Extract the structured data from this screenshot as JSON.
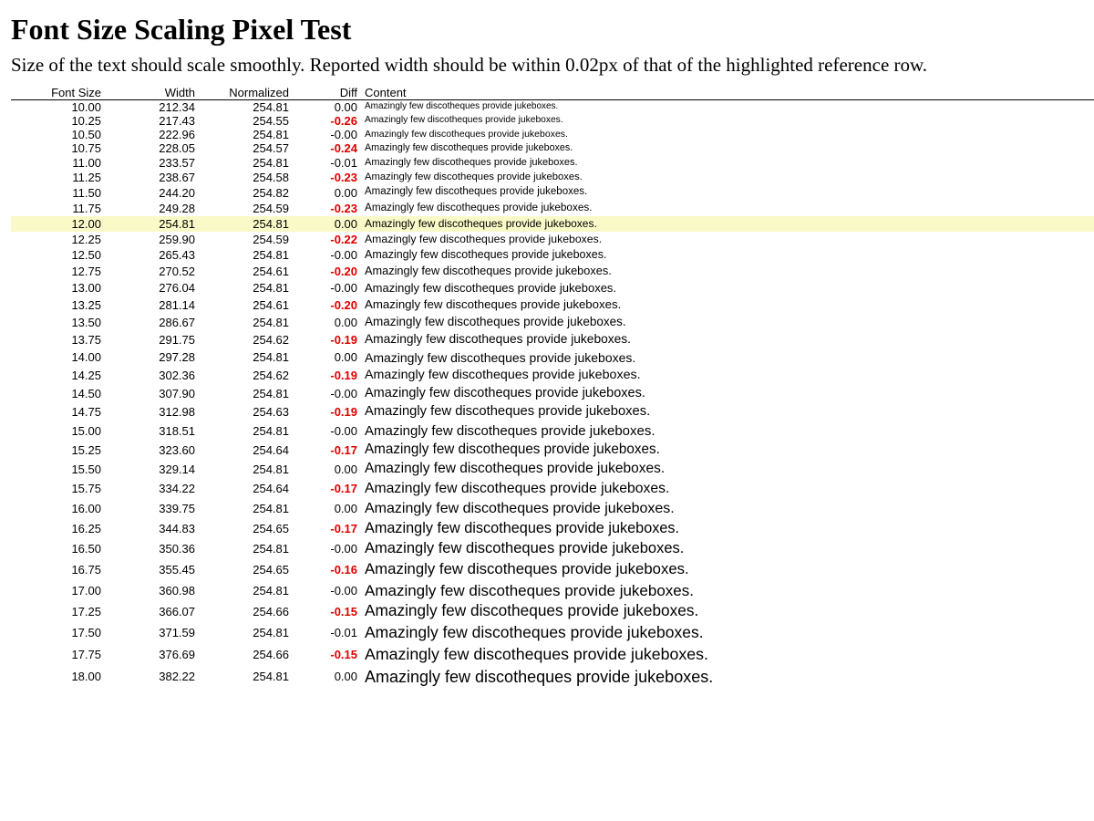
{
  "title": "Font Size Scaling Pixel Test",
  "subtitle": "Size of the text should scale smoothly. Reported width should be within 0.02px of that of the highlighted reference row.",
  "columns": {
    "font_size": "Font Size",
    "width": "Width",
    "normalized": "Normalized",
    "diff": "Diff",
    "content": "Content"
  },
  "reference_font_size": "12.00",
  "highlight_color": "#fafac8",
  "bad_diff_color": "#dd0000",
  "rows": [
    {
      "size": "10.00",
      "width": "212.34",
      "norm": "254.81",
      "diff": "0.00",
      "bad": false,
      "content": "Amazingly few discotheques provide jukeboxes."
    },
    {
      "size": "10.25",
      "width": "217.43",
      "norm": "254.55",
      "diff": "-0.26",
      "bad": true,
      "content": "Amazingly few discotheques provide jukeboxes."
    },
    {
      "size": "10.50",
      "width": "222.96",
      "norm": "254.81",
      "diff": "-0.00",
      "bad": false,
      "content": "Amazingly few discotheques provide jukeboxes."
    },
    {
      "size": "10.75",
      "width": "228.05",
      "norm": "254.57",
      "diff": "-0.24",
      "bad": true,
      "content": "Amazingly few discotheques provide jukeboxes."
    },
    {
      "size": "11.00",
      "width": "233.57",
      "norm": "254.81",
      "diff": "-0.01",
      "bad": false,
      "content": "Amazingly few discotheques provide jukeboxes."
    },
    {
      "size": "11.25",
      "width": "238.67",
      "norm": "254.58",
      "diff": "-0.23",
      "bad": true,
      "content": "Amazingly few discotheques provide jukeboxes."
    },
    {
      "size": "11.50",
      "width": "244.20",
      "norm": "254.82",
      "diff": "0.00",
      "bad": false,
      "content": "Amazingly few discotheques provide jukeboxes."
    },
    {
      "size": "11.75",
      "width": "249.28",
      "norm": "254.59",
      "diff": "-0.23",
      "bad": true,
      "content": "Amazingly few discotheques provide jukeboxes."
    },
    {
      "size": "12.00",
      "width": "254.81",
      "norm": "254.81",
      "diff": "0.00",
      "bad": false,
      "content": "Amazingly few discotheques provide jukeboxes."
    },
    {
      "size": "12.25",
      "width": "259.90",
      "norm": "254.59",
      "diff": "-0.22",
      "bad": true,
      "content": "Amazingly few discotheques provide jukeboxes."
    },
    {
      "size": "12.50",
      "width": "265.43",
      "norm": "254.81",
      "diff": "-0.00",
      "bad": false,
      "content": "Amazingly few discotheques provide jukeboxes."
    },
    {
      "size": "12.75",
      "width": "270.52",
      "norm": "254.61",
      "diff": "-0.20",
      "bad": true,
      "content": "Amazingly few discotheques provide jukeboxes."
    },
    {
      "size": "13.00",
      "width": "276.04",
      "norm": "254.81",
      "diff": "-0.00",
      "bad": false,
      "content": "Amazingly few discotheques provide jukeboxes."
    },
    {
      "size": "13.25",
      "width": "281.14",
      "norm": "254.61",
      "diff": "-0.20",
      "bad": true,
      "content": "Amazingly few discotheques provide jukeboxes."
    },
    {
      "size": "13.50",
      "width": "286.67",
      "norm": "254.81",
      "diff": "0.00",
      "bad": false,
      "content": "Amazingly few discotheques provide jukeboxes."
    },
    {
      "size": "13.75",
      "width": "291.75",
      "norm": "254.62",
      "diff": "-0.19",
      "bad": true,
      "content": "Amazingly few discotheques provide jukeboxes."
    },
    {
      "size": "14.00",
      "width": "297.28",
      "norm": "254.81",
      "diff": "0.00",
      "bad": false,
      "content": "Amazingly few discotheques provide jukeboxes."
    },
    {
      "size": "14.25",
      "width": "302.36",
      "norm": "254.62",
      "diff": "-0.19",
      "bad": true,
      "content": "Amazingly few discotheques provide jukeboxes."
    },
    {
      "size": "14.50",
      "width": "307.90",
      "norm": "254.81",
      "diff": "-0.00",
      "bad": false,
      "content": "Amazingly few discotheques provide jukeboxes."
    },
    {
      "size": "14.75",
      "width": "312.98",
      "norm": "254.63",
      "diff": "-0.19",
      "bad": true,
      "content": "Amazingly few discotheques provide jukeboxes."
    },
    {
      "size": "15.00",
      "width": "318.51",
      "norm": "254.81",
      "diff": "-0.00",
      "bad": false,
      "content": "Amazingly few discotheques provide jukeboxes."
    },
    {
      "size": "15.25",
      "width": "323.60",
      "norm": "254.64",
      "diff": "-0.17",
      "bad": true,
      "content": "Amazingly few discotheques provide jukeboxes."
    },
    {
      "size": "15.50",
      "width": "329.14",
      "norm": "254.81",
      "diff": "0.00",
      "bad": false,
      "content": "Amazingly few discotheques provide jukeboxes."
    },
    {
      "size": "15.75",
      "width": "334.22",
      "norm": "254.64",
      "diff": "-0.17",
      "bad": true,
      "content": "Amazingly few discotheques provide jukeboxes."
    },
    {
      "size": "16.00",
      "width": "339.75",
      "norm": "254.81",
      "diff": "0.00",
      "bad": false,
      "content": "Amazingly few discotheques provide jukeboxes."
    },
    {
      "size": "16.25",
      "width": "344.83",
      "norm": "254.65",
      "diff": "-0.17",
      "bad": true,
      "content": "Amazingly few discotheques provide jukeboxes."
    },
    {
      "size": "16.50",
      "width": "350.36",
      "norm": "254.81",
      "diff": "-0.00",
      "bad": false,
      "content": "Amazingly few discotheques provide jukeboxes."
    },
    {
      "size": "16.75",
      "width": "355.45",
      "norm": "254.65",
      "diff": "-0.16",
      "bad": true,
      "content": "Amazingly few discotheques provide jukeboxes."
    },
    {
      "size": "17.00",
      "width": "360.98",
      "norm": "254.81",
      "diff": "-0.00",
      "bad": false,
      "content": "Amazingly few discotheques provide jukeboxes."
    },
    {
      "size": "17.25",
      "width": "366.07",
      "norm": "254.66",
      "diff": "-0.15",
      "bad": true,
      "content": "Amazingly few discotheques provide jukeboxes."
    },
    {
      "size": "17.50",
      "width": "371.59",
      "norm": "254.81",
      "diff": "-0.01",
      "bad": false,
      "content": "Amazingly few discotheques provide jukeboxes."
    },
    {
      "size": "17.75",
      "width": "376.69",
      "norm": "254.66",
      "diff": "-0.15",
      "bad": true,
      "content": "Amazingly few discotheques provide jukeboxes."
    },
    {
      "size": "18.00",
      "width": "382.22",
      "norm": "254.81",
      "diff": "0.00",
      "bad": false,
      "content": "Amazingly few discotheques provide jukeboxes."
    }
  ]
}
